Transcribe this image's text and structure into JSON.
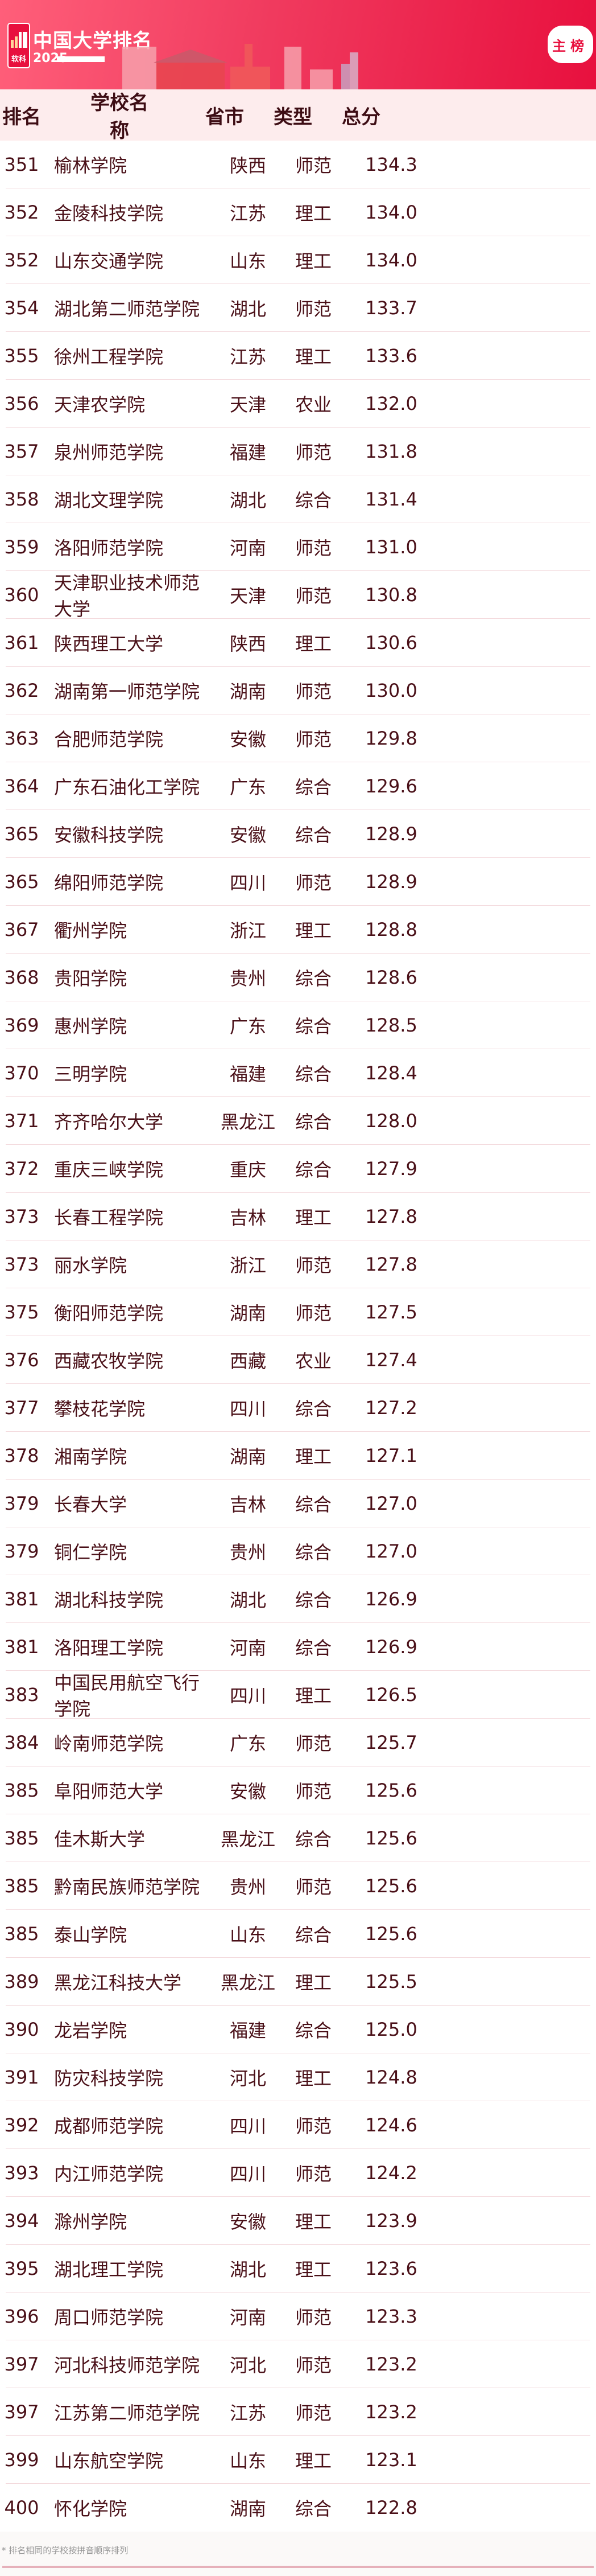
{
  "header": {
    "logo_text": "软科",
    "title": "中国大学排名",
    "year": "2025",
    "badge": "主榜",
    "colors": {
      "accent": "#e8103e",
      "text": "#4a1018"
    }
  },
  "table": {
    "columns": [
      "排名",
      "学校名称",
      "省市",
      "类型",
      "总分"
    ],
    "rows": [
      [
        "351",
        "榆林学院",
        "陕西",
        "师范",
        "134.3"
      ],
      [
        "352",
        "金陵科技学院",
        "江苏",
        "理工",
        "134.0"
      ],
      [
        "352",
        "山东交通学院",
        "山东",
        "理工",
        "134.0"
      ],
      [
        "354",
        "湖北第二师范学院",
        "湖北",
        "师范",
        "133.7"
      ],
      [
        "355",
        "徐州工程学院",
        "江苏",
        "理工",
        "133.6"
      ],
      [
        "356",
        "天津农学院",
        "天津",
        "农业",
        "132.0"
      ],
      [
        "357",
        "泉州师范学院",
        "福建",
        "师范",
        "131.8"
      ],
      [
        "358",
        "湖北文理学院",
        "湖北",
        "综合",
        "131.4"
      ],
      [
        "359",
        "洛阳师范学院",
        "河南",
        "师范",
        "131.0"
      ],
      [
        "360",
        "天津职业技术师范大学",
        "天津",
        "师范",
        "130.8"
      ],
      [
        "361",
        "陕西理工大学",
        "陕西",
        "理工",
        "130.6"
      ],
      [
        "362",
        "湖南第一师范学院",
        "湖南",
        "师范",
        "130.0"
      ],
      [
        "363",
        "合肥师范学院",
        "安徽",
        "师范",
        "129.8"
      ],
      [
        "364",
        "广东石油化工学院",
        "广东",
        "综合",
        "129.6"
      ],
      [
        "365",
        "安徽科技学院",
        "安徽",
        "综合",
        "128.9"
      ],
      [
        "365",
        "绵阳师范学院",
        "四川",
        "师范",
        "128.9"
      ],
      [
        "367",
        "衢州学院",
        "浙江",
        "理工",
        "128.8"
      ],
      [
        "368",
        "贵阳学院",
        "贵州",
        "综合",
        "128.6"
      ],
      [
        "369",
        "惠州学院",
        "广东",
        "综合",
        "128.5"
      ],
      [
        "370",
        "三明学院",
        "福建",
        "综合",
        "128.4"
      ],
      [
        "371",
        "齐齐哈尔大学",
        "黑龙江",
        "综合",
        "128.0"
      ],
      [
        "372",
        "重庆三峡学院",
        "重庆",
        "综合",
        "127.9"
      ],
      [
        "373",
        "长春工程学院",
        "吉林",
        "理工",
        "127.8"
      ],
      [
        "373",
        "丽水学院",
        "浙江",
        "师范",
        "127.8"
      ],
      [
        "375",
        "衡阳师范学院",
        "湖南",
        "师范",
        "127.5"
      ],
      [
        "376",
        "西藏农牧学院",
        "西藏",
        "农业",
        "127.4"
      ],
      [
        "377",
        "攀枝花学院",
        "四川",
        "综合",
        "127.2"
      ],
      [
        "378",
        "湘南学院",
        "湖南",
        "理工",
        "127.1"
      ],
      [
        "379",
        "长春大学",
        "吉林",
        "综合",
        "127.0"
      ],
      [
        "379",
        "铜仁学院",
        "贵州",
        "综合",
        "127.0"
      ],
      [
        "381",
        "湖北科技学院",
        "湖北",
        "综合",
        "126.9"
      ],
      [
        "381",
        "洛阳理工学院",
        "河南",
        "综合",
        "126.9"
      ],
      [
        "383",
        "中国民用航空飞行学院",
        "四川",
        "理工",
        "126.5"
      ],
      [
        "384",
        "岭南师范学院",
        "广东",
        "师范",
        "125.7"
      ],
      [
        "385",
        "阜阳师范大学",
        "安徽",
        "师范",
        "125.6"
      ],
      [
        "385",
        "佳木斯大学",
        "黑龙江",
        "综合",
        "125.6"
      ],
      [
        "385",
        "黔南民族师范学院",
        "贵州",
        "师范",
        "125.6"
      ],
      [
        "385",
        "泰山学院",
        "山东",
        "综合",
        "125.6"
      ],
      [
        "389",
        "黑龙江科技大学",
        "黑龙江",
        "理工",
        "125.5"
      ],
      [
        "390",
        "龙岩学院",
        "福建",
        "综合",
        "125.0"
      ],
      [
        "391",
        "防灾科技学院",
        "河北",
        "理工",
        "124.8"
      ],
      [
        "392",
        "成都师范学院",
        "四川",
        "师范",
        "124.6"
      ],
      [
        "393",
        "内江师范学院",
        "四川",
        "师范",
        "124.2"
      ],
      [
        "394",
        "滁州学院",
        "安徽",
        "理工",
        "123.9"
      ],
      [
        "395",
        "湖北理工学院",
        "湖北",
        "理工",
        "123.6"
      ],
      [
        "396",
        "周口师范学院",
        "河南",
        "师范",
        "123.3"
      ],
      [
        "397",
        "河北科技师范学院",
        "河北",
        "师范",
        "123.2"
      ],
      [
        "397",
        "江苏第二师范学院",
        "江苏",
        "师范",
        "123.2"
      ],
      [
        "399",
        "山东航空学院",
        "山东",
        "理工",
        "123.1"
      ],
      [
        "400",
        "怀化学院",
        "湖南",
        "综合",
        "122.8"
      ]
    ]
  },
  "footer": {
    "note": "* 排名相同的学校按拼音顺序排列"
  }
}
